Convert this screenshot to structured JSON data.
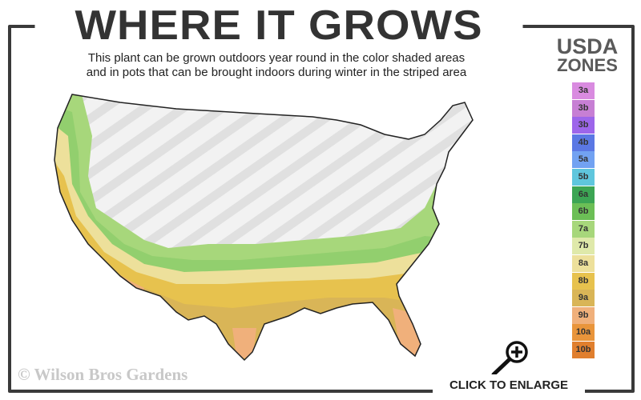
{
  "title": "WHERE IT GROWS",
  "subtitle_line1": "This plant can be grown outdoors year round in the color shaded areas",
  "subtitle_line2": "and in pots that can be brought indoors during winter in the striped area",
  "legend": {
    "heading1": "USDA",
    "heading2": "ZONES",
    "zones": [
      {
        "label": "3a",
        "color": "#d98be0"
      },
      {
        "label": "3b",
        "color": "#c77fd4"
      },
      {
        "label": "3b",
        "color": "#9d66ea"
      },
      {
        "label": "4b",
        "color": "#5b78e4"
      },
      {
        "label": "5a",
        "color": "#72a2f2"
      },
      {
        "label": "5b",
        "color": "#5fc6dd"
      },
      {
        "label": "6a",
        "color": "#3ca554"
      },
      {
        "label": "6b",
        "color": "#6cbf56"
      },
      {
        "label": "7a",
        "color": "#a7d77b"
      },
      {
        "label": "7b",
        "color": "#dfe9aa"
      },
      {
        "label": "8a",
        "color": "#ede09b"
      },
      {
        "label": "8b",
        "color": "#e7c24e"
      },
      {
        "label": "9a",
        "color": "#d9b557"
      },
      {
        "label": "9b",
        "color": "#f0b07b"
      },
      {
        "label": "10a",
        "color": "#e9953b"
      },
      {
        "label": "10b",
        "color": "#e07f2e"
      }
    ]
  },
  "watermark": "© Wilson Bros Gardens",
  "enlarge_label": "CLICK TO ENLARGE",
  "icons": {
    "enlarge": "magnifier-plus-icon"
  }
}
